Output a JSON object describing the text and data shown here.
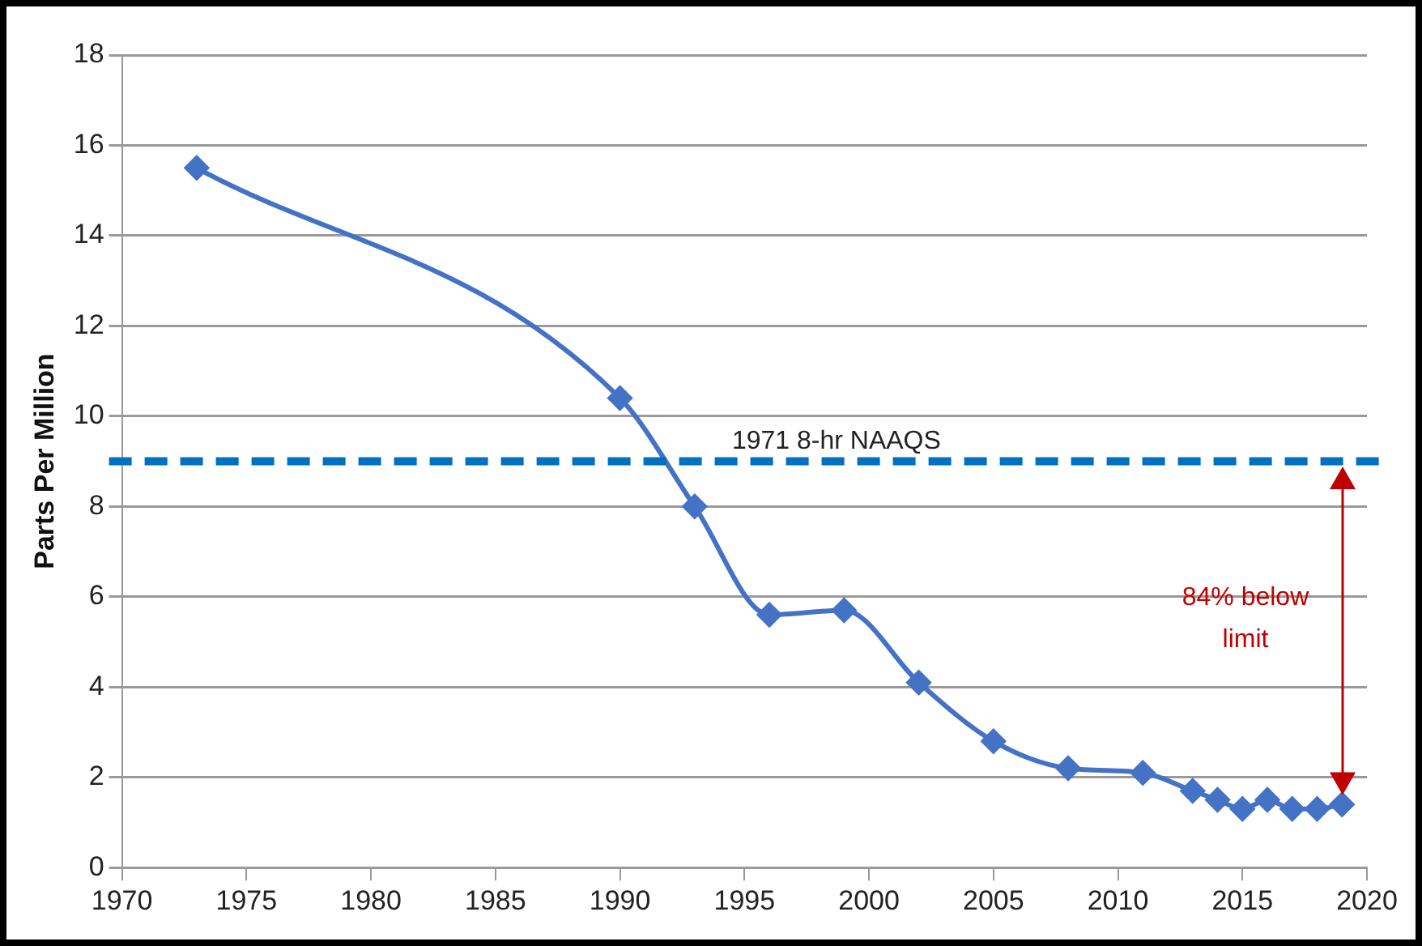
{
  "chart_data": {
    "type": "line",
    "ylabel": "Parts Per Million",
    "x": [
      1973,
      1990,
      1993,
      1996,
      1999,
      2002,
      2005,
      2008,
      2011,
      2013,
      2014,
      2015,
      2016,
      2017,
      2018,
      2019
    ],
    "series": [
      {
        "color": "#4472c4",
        "values": [
          15.5,
          10.4,
          8.0,
          5.6,
          5.7,
          4.1,
          2.8,
          2.2,
          2.1,
          1.7,
          1.5,
          1.3,
          1.5,
          1.3,
          1.3,
          1.4
        ]
      }
    ],
    "xlim": [
      1970,
      2020
    ],
    "xticks": [
      1970,
      1975,
      1980,
      1985,
      1990,
      1995,
      2000,
      2005,
      2010,
      2015,
      2020
    ],
    "ylim": [
      0,
      18
    ],
    "yticks": [
      0,
      2,
      4,
      6,
      8,
      10,
      12,
      14,
      16,
      18
    ],
    "ref_lines": [
      {
        "axis": "y",
        "value": 9,
        "label": "1971 8-hr NAAQS",
        "color": "#0070c0",
        "line_style": "dashed"
      }
    ],
    "annotations": [
      "84% below limit"
    ],
    "grid": "y",
    "legend": false,
    "marker": "diamond",
    "line_style": "solid"
  }
}
